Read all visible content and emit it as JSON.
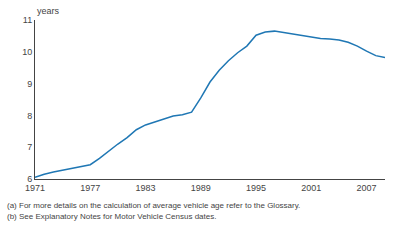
{
  "chart_data": {
    "type": "line",
    "x": [
      1971,
      1972,
      1973,
      1974,
      1975,
      1976,
      1977,
      1978,
      1979,
      1980,
      1981,
      1982,
      1983,
      1984,
      1985,
      1986,
      1987,
      1988,
      1989,
      1990,
      1991,
      1992,
      1993,
      1994,
      1995,
      1996,
      1997,
      1998,
      1999,
      2000,
      2001,
      2002,
      2003,
      2004,
      2005,
      2006,
      2007,
      2008,
      2009
    ],
    "values": [
      6.05,
      6.15,
      6.22,
      6.28,
      6.33,
      6.38,
      6.45,
      6.65,
      6.88,
      7.1,
      7.3,
      7.55,
      7.7,
      7.8,
      7.9,
      7.98,
      8.02,
      8.1,
      8.55,
      9.05,
      9.42,
      9.72,
      9.97,
      10.18,
      10.52,
      10.62,
      10.65,
      10.6,
      10.55,
      10.5,
      10.45,
      10.42,
      10.4,
      10.37,
      10.3,
      10.18,
      10.02,
      9.88,
      9.82
    ],
    "xlim": [
      1971,
      2009
    ],
    "ylim": [
      6,
      11
    ],
    "xticks": [
      1971,
      1977,
      1983,
      1989,
      1995,
      2001,
      2007
    ],
    "yticks": [
      6,
      7,
      8,
      9,
      10,
      11
    ],
    "ylabel": "years",
    "annotations": [
      "(a) For more details on the calculation of average vehicle age refer to the Glossary.",
      "(b) See Explanatory Notes for Motor Vehicle Census dates."
    ],
    "grid": false
  }
}
